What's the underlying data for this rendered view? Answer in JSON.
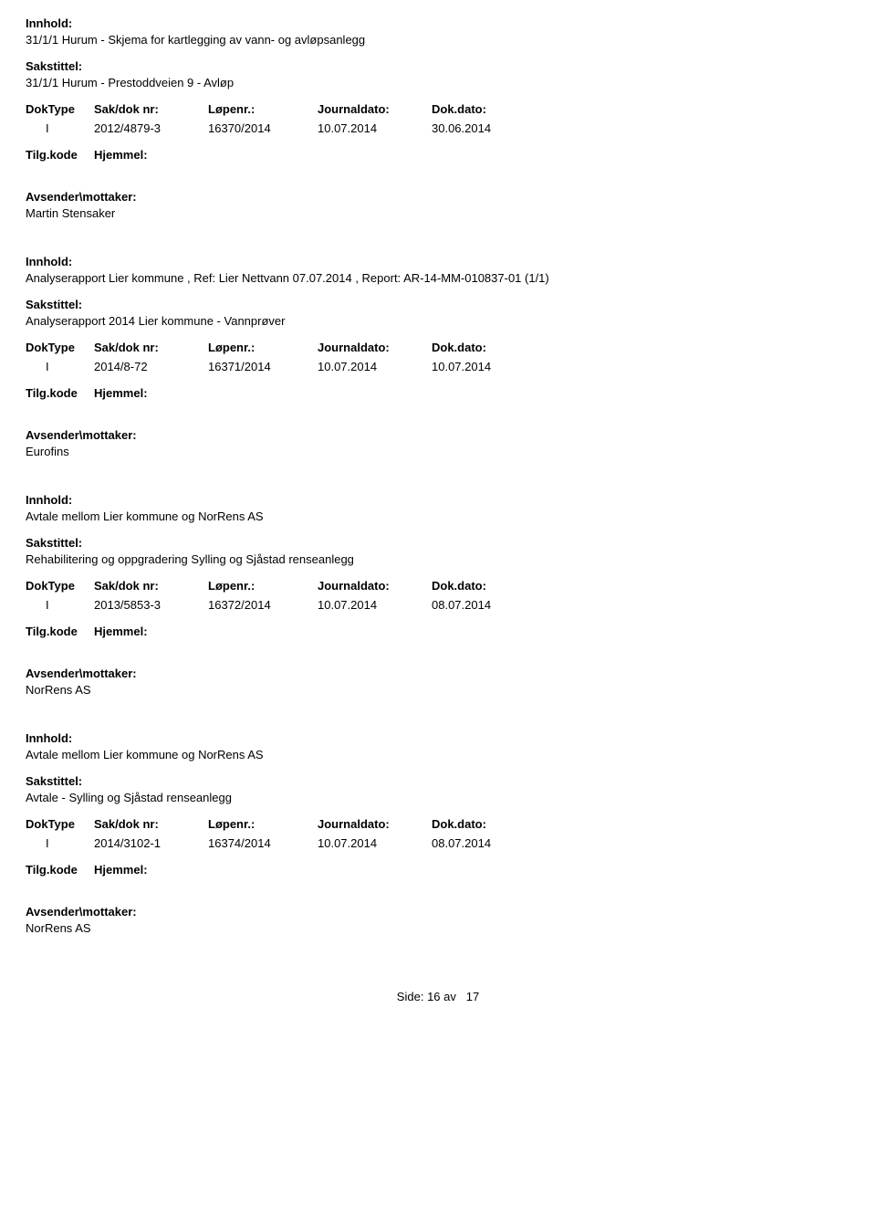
{
  "labels": {
    "innhold": "Innhold:",
    "sakstittel": "Sakstittel:",
    "doktype": "DokType",
    "saknr": "Sak/dok nr:",
    "lopenr": "Løpenr.:",
    "journaldato": "Journaldato:",
    "dokdato": "Dok.dato:",
    "tilgkode": "Tilg.kode",
    "hjemmel": "Hjemmel:",
    "avsender": "Avsender\\mottaker:",
    "side": "Side:",
    "av": "av"
  },
  "entries": [
    {
      "innhold": "31/1/1 Hurum - Skjema for kartlegging av vann- og avløpsanlegg",
      "sakstittel": "31/1/1 Hurum - Prestoddveien 9 - Avløp",
      "doktype": "I",
      "saknr": "2012/4879-3",
      "lopenr": "16370/2014",
      "journaldato": "10.07.2014",
      "dokdato": "30.06.2014",
      "avsender": "Martin Stensaker"
    },
    {
      "innhold": "Analyserapport Lier kommune , Ref: Lier Nettvann 07.07.2014 , Report: AR-14-MM-010837-01  (1/1)",
      "sakstittel": "Analyserapport 2014 Lier kommune - Vannprøver",
      "doktype": "I",
      "saknr": "2014/8-72",
      "lopenr": "16371/2014",
      "journaldato": "10.07.2014",
      "dokdato": "10.07.2014",
      "avsender": "Eurofins"
    },
    {
      "innhold": "Avtale mellom Lier kommune og NorRens AS",
      "sakstittel": "Rehabilitering og oppgradering Sylling og Sjåstad renseanlegg",
      "doktype": "I",
      "saknr": "2013/5853-3",
      "lopenr": "16372/2014",
      "journaldato": "10.07.2014",
      "dokdato": "08.07.2014",
      "avsender": "NorRens AS"
    },
    {
      "innhold": "Avtale mellom Lier kommune og NorRens AS",
      "sakstittel": "Avtale - Sylling og Sjåstad renseanlegg",
      "doktype": "I",
      "saknr": "2014/3102-1",
      "lopenr": "16374/2014",
      "journaldato": "10.07.2014",
      "dokdato": "08.07.2014",
      "avsender": "NorRens AS"
    }
  ],
  "page": {
    "current": "16",
    "total": "17"
  }
}
